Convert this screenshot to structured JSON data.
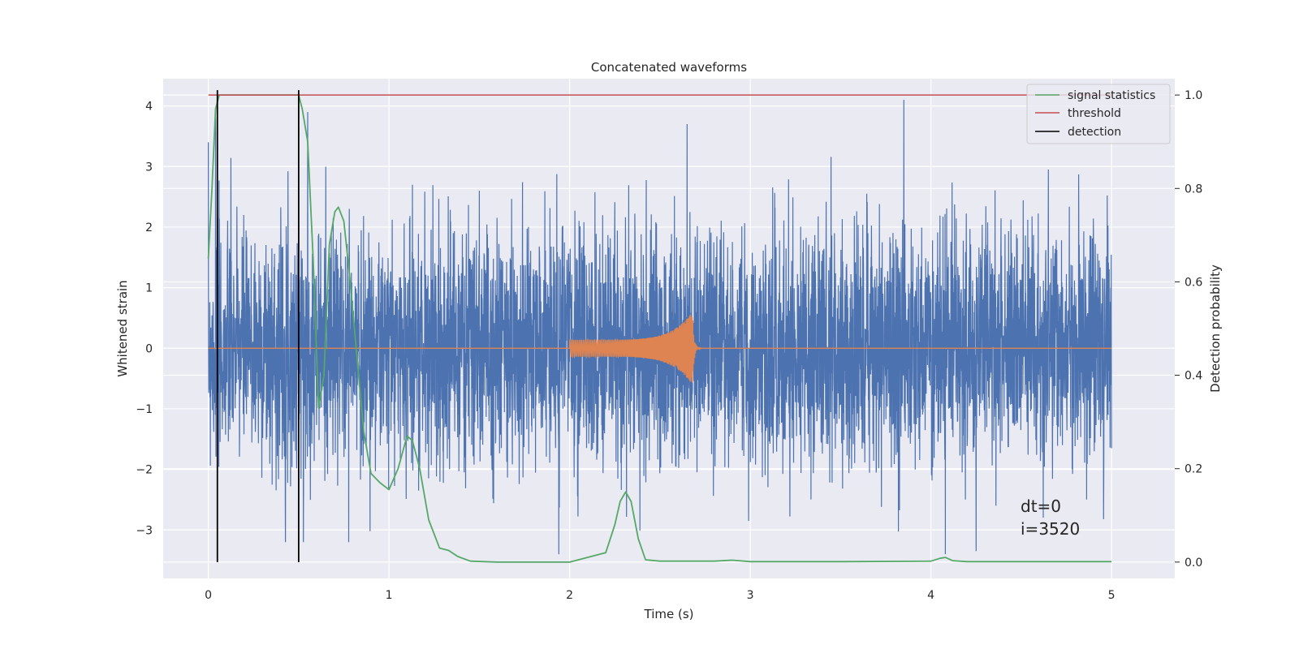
{
  "chart_data": {
    "type": "line",
    "title": "Concatenated waveforms",
    "xlabel": "Time (s)",
    "ylabel": "Whitened strain",
    "y2label": "Detection probability",
    "xlim": [
      -0.25,
      5.35
    ],
    "ylim": [
      -3.8,
      4.45
    ],
    "y2lim": [
      -0.035,
      1.035
    ],
    "xticks": [
      0,
      1,
      2,
      3,
      4,
      5
    ],
    "yticks": [
      -3,
      -2,
      -1,
      0,
      1,
      2,
      3,
      4
    ],
    "y2ticks": [
      0.0,
      0.2,
      0.4,
      0.6,
      0.8,
      1.0
    ],
    "xtick_labels": [
      "0",
      "1",
      "2",
      "3",
      "4",
      "5"
    ],
    "ytick_labels": [
      "−3",
      "−2",
      "−1",
      "0",
      "1",
      "2",
      "3",
      "4"
    ],
    "y2tick_labels": [
      "0.0",
      "0.2",
      "0.4",
      "0.6",
      "0.8",
      "1.0"
    ],
    "grid": true,
    "legend_position": "top-right",
    "legend": [
      "signal statistics",
      "threshold",
      "detection"
    ],
    "colors": {
      "noise": "#4c72b0",
      "template": "#dd8452",
      "signal_statistics": "#55a868",
      "threshold": "#c44e52",
      "detection": "#000000",
      "background": "#eaeaf2"
    },
    "threshold": 1.0,
    "detections": [
      0.05,
      0.5
    ],
    "whitened_noise": {
      "x_range": [
        0,
        5
      ],
      "typical_amplitude": 1.0,
      "spikes": [
        [
          0.04,
          3.8
        ],
        [
          0.5,
          3.1
        ],
        [
          0.55,
          3.9
        ],
        [
          0.78,
          2.3
        ],
        [
          1.13,
          2.7
        ],
        [
          1.5,
          2.6
        ],
        [
          1.94,
          -3.4
        ],
        [
          2.65,
          3.7
        ],
        [
          3.85,
          4.1
        ],
        [
          4.08,
          -3.4
        ],
        [
          4.65,
          2.95
        ],
        [
          4.25,
          -3.35
        ]
      ]
    },
    "template": {
      "x_range": [
        2.0,
        2.68
      ],
      "start_amplitude": 0.14,
      "peak_amplitude": 0.6,
      "peak_time": 2.68
    },
    "signal_statistics": {
      "x": [
        0.0,
        0.02,
        0.04,
        0.06,
        0.08,
        0.1,
        0.2,
        0.3,
        0.4,
        0.48,
        0.5,
        0.52,
        0.55,
        0.58,
        0.61,
        0.64,
        0.67,
        0.7,
        0.72,
        0.75,
        0.78,
        0.82,
        0.86,
        0.9,
        0.95,
        1.0,
        1.05,
        1.1,
        1.13,
        1.17,
        1.22,
        1.28,
        1.33,
        1.38,
        1.45,
        1.6,
        2.0,
        2.2,
        2.25,
        2.28,
        2.31,
        2.34,
        2.38,
        2.42,
        2.5,
        2.8,
        2.9,
        3.0,
        3.5,
        4.0,
        4.05,
        4.08,
        4.12,
        4.2,
        5.0
      ],
      "y": [
        0.65,
        0.8,
        0.97,
        1.0,
        1.0,
        1.0,
        1.0,
        1.0,
        1.0,
        1.0,
        1.0,
        0.97,
        0.9,
        0.65,
        0.33,
        0.4,
        0.68,
        0.75,
        0.76,
        0.73,
        0.62,
        0.45,
        0.28,
        0.19,
        0.17,
        0.155,
        0.2,
        0.27,
        0.26,
        0.2,
        0.09,
        0.03,
        0.025,
        0.012,
        0.002,
        0.0,
        0.0,
        0.02,
        0.08,
        0.13,
        0.15,
        0.13,
        0.05,
        0.005,
        0.002,
        0.002,
        0.004,
        0.001,
        0.001,
        0.002,
        0.008,
        0.01,
        0.003,
        0.001,
        0.001
      ]
    },
    "annotation": [
      "dt=0",
      "i=3520"
    ]
  }
}
